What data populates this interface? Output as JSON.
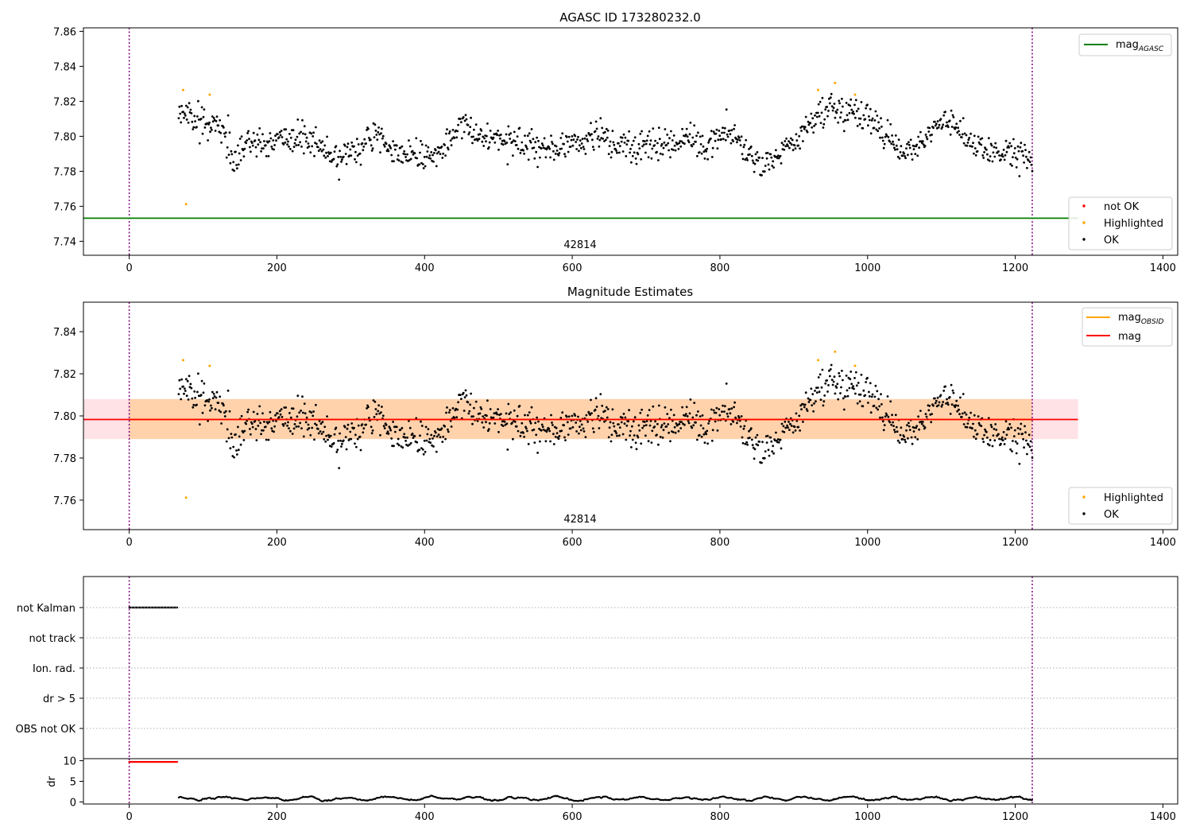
{
  "panels": [
    {
      "id": "top",
      "title": "AGASC ID 173280232.0",
      "obsid_label": "42814",
      "xlim": [
        -62,
        1420
      ],
      "ylim": [
        7.732,
        7.862
      ],
      "xticks": [
        0,
        200,
        400,
        600,
        800,
        1000,
        1200,
        1400
      ],
      "yticks": [
        7.74,
        7.76,
        7.78,
        7.8,
        7.82,
        7.84,
        7.86
      ],
      "ytick_labels": [
        "7.74",
        "7.76",
        "7.78",
        "7.80",
        "7.82",
        "7.84",
        "7.86"
      ],
      "legend_lines": [
        {
          "label_main": "mag",
          "label_sub": "AGASC",
          "color": "#008000"
        }
      ],
      "legend_points": [
        {
          "label": "not OK",
          "color": "#ff0000"
        },
        {
          "label": "Highlighted",
          "color": "#ffa500"
        },
        {
          "label": "OK",
          "color": "#000000"
        }
      ]
    },
    {
      "id": "middle",
      "title": "Magnitude Estimates",
      "obsid_label": "42814",
      "xlim": [
        -62,
        1420
      ],
      "ylim": [
        7.746,
        7.854
      ],
      "xticks": [
        0,
        200,
        400,
        600,
        800,
        1000,
        1200,
        1400
      ],
      "yticks": [
        7.76,
        7.78,
        7.8,
        7.82,
        7.84
      ],
      "ytick_labels": [
        "7.76",
        "7.78",
        "7.80",
        "7.82",
        "7.84"
      ],
      "legend_lines": [
        {
          "label_main": "mag",
          "label_sub": "OBSID",
          "color": "#ffa500"
        },
        {
          "label_main": "mag",
          "label_sub": "",
          "color": "#ff0000"
        }
      ],
      "legend_points": [
        {
          "label": "Highlighted",
          "color": "#ffa500"
        },
        {
          "label": "OK",
          "color": "#000000"
        }
      ]
    },
    {
      "id": "flags",
      "category_labels": [
        "not Kalman",
        "not track",
        "Ion. rad.",
        "dr > 5",
        "OBS not OK"
      ]
    },
    {
      "id": "dr",
      "ylabel": "dr",
      "ylim": [
        -0.5,
        10.5
      ],
      "yticks": [
        0,
        5,
        10
      ],
      "ytick_labels": [
        "0",
        "5",
        "10"
      ],
      "xticks": [
        0,
        200,
        400,
        600,
        800,
        1000,
        1200,
        1400
      ]
    }
  ],
  "chart_data": {
    "type": "scatter",
    "title": "AGASC ID 173280232.0",
    "subtitle": "Magnitude Estimates",
    "xlim": [
      -62,
      1420
    ],
    "obsid": "42814",
    "obs_start": 0,
    "obs_stop": 1223,
    "mag_agasc": 7.7532,
    "mag_obsid": 7.7983,
    "mag": 7.7983,
    "mag_band": [
      7.789,
      7.808
    ],
    "mag_band_x": [
      -62,
      1285
    ],
    "line_x_end": 1285,
    "series_anchors_x": [
      67,
      72,
      80,
      90,
      100,
      110,
      120,
      130,
      140,
      150,
      160,
      180,
      200,
      220,
      240,
      260,
      280,
      300,
      320,
      340,
      360,
      380,
      400,
      420,
      440,
      450,
      460,
      480,
      500,
      520,
      540,
      560,
      580,
      600,
      620,
      640,
      660,
      680,
      700,
      720,
      740,
      760,
      780,
      800,
      820,
      840,
      860,
      880,
      900,
      920,
      940,
      960,
      980,
      1000,
      1020,
      1040,
      1060,
      1080,
      1100,
      1110,
      1130,
      1150,
      1170,
      1190,
      1210,
      1223
    ],
    "series_anchors_y": [
      7.818,
      7.815,
      7.812,
      7.81,
      7.81,
      7.808,
      7.806,
      7.8,
      7.787,
      7.788,
      7.798,
      7.795,
      7.797,
      7.8,
      7.8,
      7.795,
      7.788,
      7.79,
      7.797,
      7.8,
      7.79,
      7.79,
      7.79,
      7.79,
      7.8,
      7.81,
      7.805,
      7.8,
      7.797,
      7.797,
      7.795,
      7.795,
      7.795,
      7.795,
      7.797,
      7.8,
      7.795,
      7.793,
      7.795,
      7.795,
      7.795,
      7.8,
      7.792,
      7.8,
      7.8,
      7.79,
      7.784,
      7.79,
      7.795,
      7.805,
      7.815,
      7.815,
      7.815,
      7.81,
      7.803,
      7.792,
      7.792,
      7.8,
      7.81,
      7.812,
      7.8,
      7.795,
      7.79,
      7.79,
      7.79,
      7.785
    ],
    "scatter_noise": 0.0042,
    "n_points": 1140,
    "highlighted_points": [
      [
        73,
        7.8265
      ],
      [
        77,
        7.7612
      ],
      [
        109,
        7.8238
      ],
      [
        933,
        7.8265
      ],
      [
        956,
        7.8305
      ],
      [
        983,
        7.8238
      ]
    ],
    "not_ok_points": [],
    "flag_rows": [
      "not Kalman",
      "not track",
      "Ion. rad.",
      "dr > 5",
      "OBS not OK"
    ],
    "not_kalman_x_range": [
      0,
      66
    ],
    "dr_high_x_range": [
      0,
      66
    ],
    "dr_high_value": 9.7,
    "dr_ok_mean": 0.8,
    "xlabel": "",
    "ylabel_dr": "dr"
  }
}
